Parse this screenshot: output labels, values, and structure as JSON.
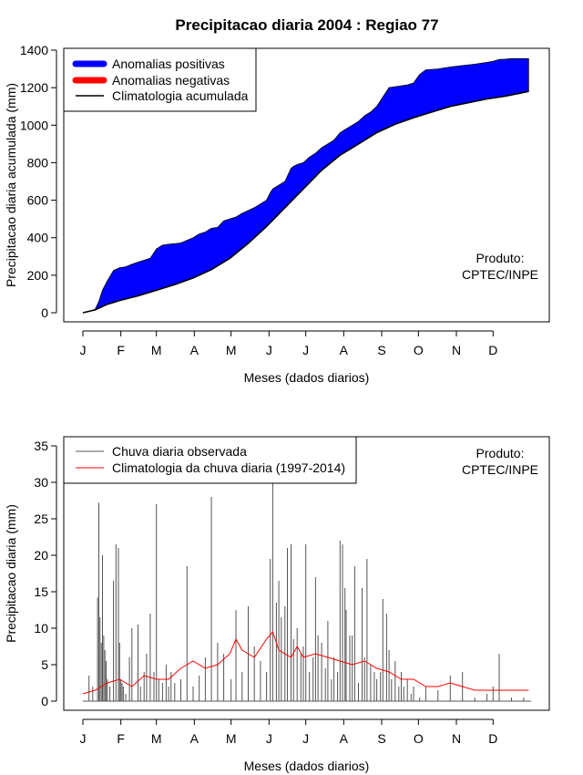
{
  "chart_data": [
    {
      "type": "area",
      "title": "Precipitacao diaria 2004 : Regiao 77",
      "xlabel": "Meses (dados diarios)",
      "ylabel": "Precipitacao diaria acumulada (mm)",
      "xlim": [
        0,
        366
      ],
      "ylim": [
        0,
        1400
      ],
      "yticks": [
        0,
        200,
        400,
        600,
        800,
        1000,
        1200,
        1400
      ],
      "month_labels": [
        "J",
        "F",
        "M",
        "A",
        "M",
        "J",
        "J",
        "A",
        "S",
        "O",
        "N",
        "D"
      ],
      "month_starts": [
        0,
        31,
        60,
        91,
        121,
        152,
        182,
        213,
        244,
        274,
        305,
        335
      ],
      "legend": {
        "placement": "top-left",
        "entries": [
          {
            "label": "Anomalias positivas",
            "color": "#0000ff"
          },
          {
            "label": "Anomalias negativas",
            "color": "#ff0000"
          },
          {
            "label": "Climatologia acumulada",
            "color": "#000000"
          }
        ]
      },
      "annotation": [
        "Produto:",
        "CPTEC/INPE"
      ],
      "observed_cumulative": {
        "day": [
          0,
          5,
          10,
          13,
          16,
          20,
          25,
          30,
          35,
          40,
          45,
          50,
          55,
          60,
          65,
          70,
          75,
          80,
          90,
          95,
          100,
          105,
          110,
          115,
          120,
          125,
          130,
          135,
          140,
          145,
          150,
          153,
          155,
          160,
          165,
          170,
          172,
          175,
          180,
          185,
          190,
          195,
          200,
          205,
          210,
          215,
          220,
          225,
          230,
          235,
          240,
          245,
          250,
          255,
          260,
          265,
          270,
          275,
          280,
          290,
          300,
          310,
          320,
          330,
          335,
          340,
          345,
          350,
          360,
          364
        ],
        "value": [
          0,
          8,
          18,
          60,
          120,
          170,
          225,
          240,
          245,
          258,
          270,
          280,
          290,
          340,
          360,
          365,
          368,
          372,
          400,
          420,
          430,
          450,
          455,
          490,
          500,
          510,
          530,
          545,
          560,
          580,
          600,
          640,
          660,
          680,
          700,
          770,
          780,
          790,
          800,
          830,
          850,
          880,
          900,
          920,
          960,
          980,
          1000,
          1020,
          1050,
          1070,
          1100,
          1150,
          1200,
          1205,
          1210,
          1215,
          1225,
          1270,
          1295,
          1300,
          1310,
          1318,
          1325,
          1335,
          1340,
          1350,
          1352,
          1355,
          1355,
          1355
        ]
      },
      "climatology_cumulative": {
        "day": [
          0,
          10,
          20,
          30,
          45,
          60,
          75,
          90,
          105,
          120,
          135,
          150,
          165,
          180,
          195,
          210,
          225,
          240,
          255,
          270,
          285,
          300,
          315,
          330,
          345,
          364
        ],
        "value": [
          0,
          15,
          45,
          65,
          90,
          120,
          150,
          185,
          230,
          290,
          370,
          460,
          560,
          660,
          760,
          840,
          900,
          960,
          1005,
          1040,
          1070,
          1100,
          1120,
          1140,
          1155,
          1180
        ]
      }
    },
    {
      "type": "bar",
      "xlabel": "Meses (dados diarios)",
      "ylabel": "Precipitacao diaria (mm)",
      "xlim": [
        0,
        366
      ],
      "ylim": [
        0,
        35
      ],
      "yticks": [
        0,
        5,
        10,
        15,
        20,
        25,
        30,
        35
      ],
      "month_labels": [
        "J",
        "F",
        "M",
        "A",
        "M",
        "J",
        "J",
        "A",
        "S",
        "O",
        "N",
        "D"
      ],
      "month_starts": [
        0,
        31,
        60,
        91,
        121,
        152,
        182,
        213,
        244,
        274,
        305,
        335
      ],
      "legend": {
        "placement": "top-left",
        "entries": [
          {
            "label": "Chuva diaria observada",
            "color": "#555555"
          },
          {
            "label": "Climatologia da chuva diaria (1997-2014)",
            "color": "#ff0000"
          }
        ]
      },
      "annotation": [
        "Produto:",
        "CPTEC/INPE"
      ],
      "observed_daily": {
        "day": [
          5,
          8,
          12,
          13,
          14,
          15,
          16,
          17,
          18,
          19,
          20,
          22,
          25,
          27,
          29,
          30,
          31,
          32,
          33,
          35,
          38,
          40,
          45,
          47,
          50,
          52,
          55,
          58,
          60,
          62,
          65,
          68,
          70,
          72,
          75,
          80,
          85,
          90,
          95,
          100,
          105,
          110,
          115,
          121,
          125,
          130,
          135,
          140,
          145,
          150,
          153,
          155,
          158,
          160,
          162,
          165,
          167,
          170,
          172,
          175,
          178,
          180,
          182,
          185,
          188,
          190,
          192,
          195,
          198,
          200,
          203,
          205,
          208,
          210,
          212,
          214,
          215,
          218,
          220,
          222,
          225,
          228,
          230,
          232,
          235,
          238,
          240,
          243,
          245,
          248,
          250,
          252,
          255,
          258,
          260,
          262,
          265,
          268,
          270,
          275,
          280,
          290,
          300,
          310,
          320,
          330,
          335,
          340,
          350,
          360
        ],
        "value": [
          3.5,
          2.0,
          14.2,
          27.2,
          11.5,
          8.0,
          20.0,
          9.0,
          7.0,
          5.5,
          3.0,
          2.0,
          16.5,
          21.5,
          21.0,
          8.0,
          3.0,
          2.5,
          2.0,
          1.0,
          6.0,
          10.0,
          10.5,
          2.0,
          4.0,
          6.5,
          12.0,
          4.0,
          27.0,
          3.0,
          2.5,
          5.0,
          2.0,
          4.0,
          2.5,
          3.0,
          18.5,
          2.0,
          3.5,
          6.0,
          28.0,
          8.0,
          6.5,
          3.0,
          12.5,
          4.0,
          13.0,
          7.5,
          5.5,
          4.0,
          19.5,
          30.0,
          13.5,
          16.5,
          11.5,
          13.0,
          21.0,
          21.5,
          8.5,
          10.0,
          6.5,
          7.5,
          21.5,
          4.0,
          6.0,
          17.0,
          9.0,
          8.0,
          4.5,
          11.0,
          3.0,
          6.0,
          4.0,
          22.0,
          21.5,
          15.5,
          12.5,
          9.0,
          9.0,
          18.5,
          2.5,
          15.5,
          6.0,
          19.5,
          5.0,
          4.0,
          3.0,
          4.0,
          14.0,
          12.0,
          7.0,
          3.0,
          5.5,
          2.0,
          4.0,
          2.0,
          3.0,
          1.0,
          2.0,
          0.5,
          2.0,
          1.5,
          3.5,
          4.0,
          0.5,
          1.0,
          2.0,
          6.5,
          0.5,
          0.5
        ]
      },
      "climatology_daily": {
        "day": [
          0,
          10,
          20,
          30,
          40,
          50,
          60,
          70,
          80,
          90,
          100,
          110,
          120,
          125,
          130,
          140,
          150,
          155,
          160,
          170,
          175,
          180,
          190,
          200,
          210,
          220,
          230,
          240,
          250,
          260,
          270,
          280,
          290,
          300,
          310,
          320,
          330,
          340,
          350,
          364
        ],
        "value": [
          1.0,
          1.5,
          2.5,
          3.0,
          2.0,
          3.5,
          3.0,
          3.0,
          4.5,
          5.5,
          4.5,
          5.0,
          6.5,
          8.5,
          7.0,
          6.0,
          8.5,
          9.5,
          7.0,
          6.0,
          7.5,
          6.0,
          6.5,
          6.0,
          5.5,
          5.0,
          5.5,
          4.5,
          4.0,
          3.0,
          3.0,
          2.0,
          2.0,
          2.5,
          2.0,
          1.5,
          1.5,
          1.5,
          1.5,
          1.5
        ]
      }
    }
  ]
}
